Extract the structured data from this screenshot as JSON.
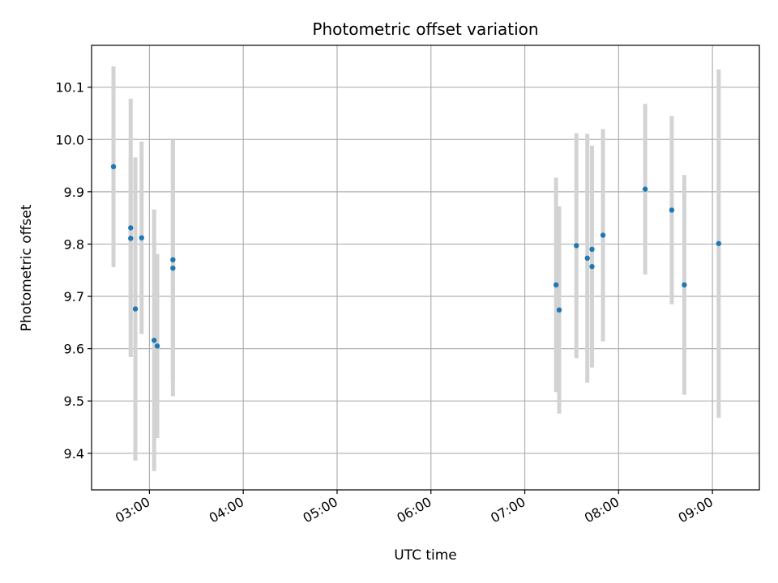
{
  "chart_data": {
    "type": "scatter",
    "title": "Photometric offset variation",
    "xlabel": "UTC time",
    "ylabel": "Photometric offset",
    "x_ticks": [
      "03:00",
      "04:00",
      "05:00",
      "06:00",
      "07:00",
      "08:00",
      "09:00"
    ],
    "y_ticks": [
      "9.4",
      "9.5",
      "9.6",
      "9.7",
      "9.8",
      "9.9",
      "10.0",
      "10.1"
    ],
    "xlim": [
      "02:23",
      "09:30"
    ],
    "ylim": [
      9.33,
      10.18
    ],
    "grid": true,
    "colors": {
      "point": "#1f77b4",
      "errorbar": "#d3d3d3",
      "grid": "#b0b0b0"
    },
    "series": [
      {
        "x": [
          "02:37",
          "02:48",
          "02:48",
          "02:51",
          "02:55",
          "03:03",
          "03:05",
          "03:15",
          "03:15",
          "07:20",
          "07:22",
          "07:33",
          "07:40",
          "07:43",
          "07:43",
          "07:50",
          "08:17",
          "08:34",
          "08:42",
          "09:04"
        ],
        "y": [
          9.948,
          9.831,
          9.811,
          9.676,
          9.812,
          9.616,
          9.605,
          9.77,
          9.754,
          9.722,
          9.674,
          9.797,
          9.773,
          9.757,
          9.79,
          9.817,
          9.905,
          9.865,
          9.722,
          9.801
        ],
        "yerr": [
          0.192,
          0.247,
          0.154,
          0.29,
          0.184,
          0.25,
          0.176,
          0.228,
          0.245,
          0.205,
          0.198,
          0.215,
          0.238,
          0.193,
          0.198,
          0.203,
          0.163,
          0.18,
          0.21,
          0.333
        ]
      }
    ]
  }
}
